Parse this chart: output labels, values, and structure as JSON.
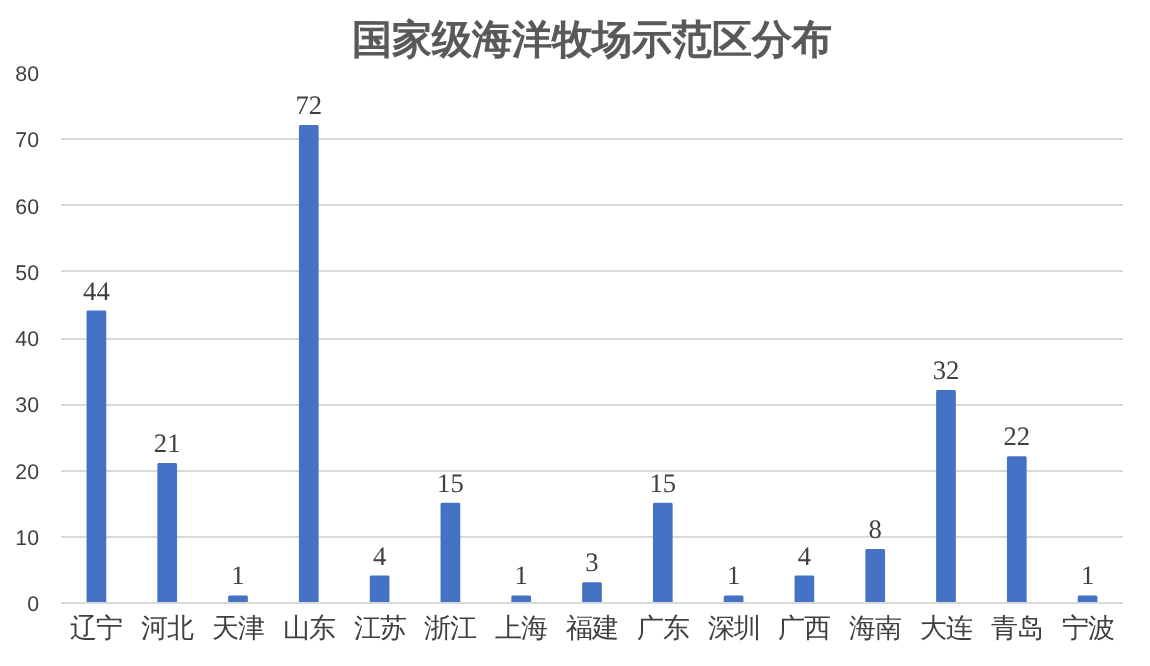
{
  "chart_data": {
    "type": "bar",
    "title": "国家级海洋牧场示范区分布",
    "categories": [
      "辽宁",
      "河北",
      "天津",
      "山东",
      "江苏",
      "浙江",
      "上海",
      "福建",
      "广东",
      "深圳",
      "广西",
      "海南",
      "大连",
      "青岛",
      "宁波"
    ],
    "values": [
      44,
      21,
      1,
      72,
      4,
      15,
      1,
      3,
      15,
      1,
      4,
      8,
      32,
      22,
      1
    ],
    "color": "#4472c4",
    "ylim": [
      0,
      80
    ],
    "yticks": [
      0,
      10,
      20,
      30,
      40,
      50,
      60,
      70,
      80
    ],
    "grid": "y",
    "data_labels": true
  }
}
